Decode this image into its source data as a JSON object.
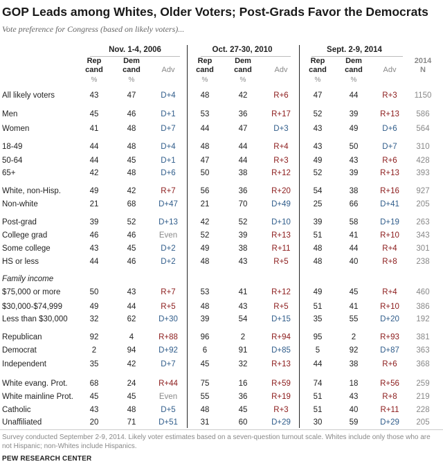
{
  "title": "GOP Leads among Whites, Older Voters; Post-Grads Favor the Democrats",
  "subtitle": "Vote preference for Congress (based on likely voters)...",
  "colors": {
    "rep_adv": "#8b1a1a",
    "dem_adv": "#2f5c8a",
    "neutral": "#888888"
  },
  "periods": [
    "Nov. 1-4, 2006",
    "Oct. 27-30, 2010",
    "Sept. 2-9, 2014"
  ],
  "column_headers": {
    "rep": [
      "Rep",
      "cand"
    ],
    "dem": [
      "Dem",
      "cand"
    ],
    "adv": "Adv",
    "pct": "%",
    "n": [
      "2014",
      "N"
    ]
  },
  "chart_data": {
    "type": "table",
    "title": "GOP Leads among Whites, Older Voters; Post-Grads Favor the Democrats",
    "subtitle": "Vote preference for Congress (based on likely voters)...",
    "periods": [
      "Nov. 1-4, 2006",
      "Oct. 27-30, 2010",
      "Sept. 2-9, 2014"
    ],
    "rows": [
      {
        "label": "All likely voters",
        "v2006": [
          43,
          47,
          "D+4"
        ],
        "v2010": [
          48,
          42,
          "R+6"
        ],
        "v2014": [
          47,
          44,
          "R+3"
        ],
        "n": "1150"
      },
      {
        "label": "Men",
        "v2006": [
          45,
          46,
          "D+1"
        ],
        "v2010": [
          53,
          36,
          "R+17"
        ],
        "v2014": [
          52,
          39,
          "R+13"
        ],
        "n": "586"
      },
      {
        "label": "Women",
        "v2006": [
          41,
          48,
          "D+7"
        ],
        "v2010": [
          44,
          47,
          "D+3"
        ],
        "v2014": [
          43,
          49,
          "D+6"
        ],
        "n": "564"
      },
      {
        "label": "18-49",
        "v2006": [
          44,
          48,
          "D+4"
        ],
        "v2010": [
          48,
          44,
          "R+4"
        ],
        "v2014": [
          43,
          50,
          "D+7"
        ],
        "n": "310"
      },
      {
        "label": "50-64",
        "v2006": [
          44,
          45,
          "D+1"
        ],
        "v2010": [
          47,
          44,
          "R+3"
        ],
        "v2014": [
          49,
          43,
          "R+6"
        ],
        "n": "428"
      },
      {
        "label": "65+",
        "v2006": [
          42,
          48,
          "D+6"
        ],
        "v2010": [
          50,
          38,
          "R+12"
        ],
        "v2014": [
          52,
          39,
          "R+13"
        ],
        "n": "393"
      },
      {
        "label": "White, non-Hisp.",
        "v2006": [
          49,
          42,
          "R+7"
        ],
        "v2010": [
          56,
          36,
          "R+20"
        ],
        "v2014": [
          54,
          38,
          "R+16"
        ],
        "n": "927"
      },
      {
        "label": "Non-white",
        "v2006": [
          21,
          68,
          "D+47"
        ],
        "v2010": [
          21,
          70,
          "D+49"
        ],
        "v2014": [
          25,
          66,
          "D+41"
        ],
        "n": "205"
      },
      {
        "label": "Post-grad",
        "v2006": [
          39,
          52,
          "D+13"
        ],
        "v2010": [
          42,
          52,
          "D+10"
        ],
        "v2014": [
          39,
          58,
          "D+19"
        ],
        "n": "263"
      },
      {
        "label": "College grad",
        "v2006": [
          46,
          46,
          "Even"
        ],
        "v2010": [
          52,
          39,
          "R+13"
        ],
        "v2014": [
          51,
          41,
          "R+10"
        ],
        "n": "343"
      },
      {
        "label": "Some college",
        "v2006": [
          43,
          45,
          "D+2"
        ],
        "v2010": [
          49,
          38,
          "R+11"
        ],
        "v2014": [
          48,
          44,
          "R+4"
        ],
        "n": "301"
      },
      {
        "label": "HS or less",
        "v2006": [
          44,
          46,
          "D+2"
        ],
        "v2010": [
          48,
          43,
          "R+5"
        ],
        "v2014": [
          48,
          40,
          "R+8"
        ],
        "n": "238"
      },
      {
        "section": "Family income"
      },
      {
        "label": "$75,000 or more",
        "v2006": [
          50,
          43,
          "R+7"
        ],
        "v2010": [
          53,
          41,
          "R+12"
        ],
        "v2014": [
          49,
          45,
          "R+4"
        ],
        "n": "460"
      },
      {
        "label": "$30,000-$74,999",
        "v2006": [
          49,
          44,
          "R+5"
        ],
        "v2010": [
          48,
          43,
          "R+5"
        ],
        "v2014": [
          51,
          41,
          "R+10"
        ],
        "n": "386"
      },
      {
        "label": "Less than $30,000",
        "v2006": [
          32,
          62,
          "D+30"
        ],
        "v2010": [
          39,
          54,
          "D+15"
        ],
        "v2014": [
          35,
          55,
          "D+20"
        ],
        "n": "192"
      },
      {
        "label": "Republican",
        "v2006": [
          92,
          4,
          "R+88"
        ],
        "v2010": [
          96,
          2,
          "R+94"
        ],
        "v2014": [
          95,
          2,
          "R+93"
        ],
        "n": "381"
      },
      {
        "label": "Democrat",
        "v2006": [
          2,
          94,
          "D+92"
        ],
        "v2010": [
          6,
          91,
          "D+85"
        ],
        "v2014": [
          5,
          92,
          "D+87"
        ],
        "n": "363"
      },
      {
        "label": "Independent",
        "v2006": [
          35,
          42,
          "D+7"
        ],
        "v2010": [
          45,
          32,
          "R+13"
        ],
        "v2014": [
          44,
          38,
          "R+6"
        ],
        "n": "368"
      },
      {
        "label": "White evang. Prot.",
        "v2006": [
          68,
          24,
          "R+44"
        ],
        "v2010": [
          75,
          16,
          "R+59"
        ],
        "v2014": [
          74,
          18,
          "R+56"
        ],
        "n": "259"
      },
      {
        "label": "White mainline Prot.",
        "v2006": [
          45,
          45,
          "Even"
        ],
        "v2010": [
          55,
          36,
          "R+19"
        ],
        "v2014": [
          51,
          43,
          "R+8"
        ],
        "n": "219"
      },
      {
        "label": "Catholic",
        "v2006": [
          43,
          48,
          "D+5"
        ],
        "v2010": [
          48,
          45,
          "R+3"
        ],
        "v2014": [
          51,
          40,
          "R+11"
        ],
        "n": "228"
      },
      {
        "label": "Unaffiliated",
        "v2006": [
          20,
          71,
          "D+51"
        ],
        "v2010": [
          31,
          60,
          "D+29"
        ],
        "v2014": [
          30,
          59,
          "D+29"
        ],
        "n": "205"
      }
    ]
  },
  "footnote": "Survey conducted September 2-9, 2014. Likely voter estimates based on a seven-question turnout scale. Whites include only those who are not Hispanic; non-Whites include Hispanics.",
  "source": "PEW RESEARCH CENTER"
}
